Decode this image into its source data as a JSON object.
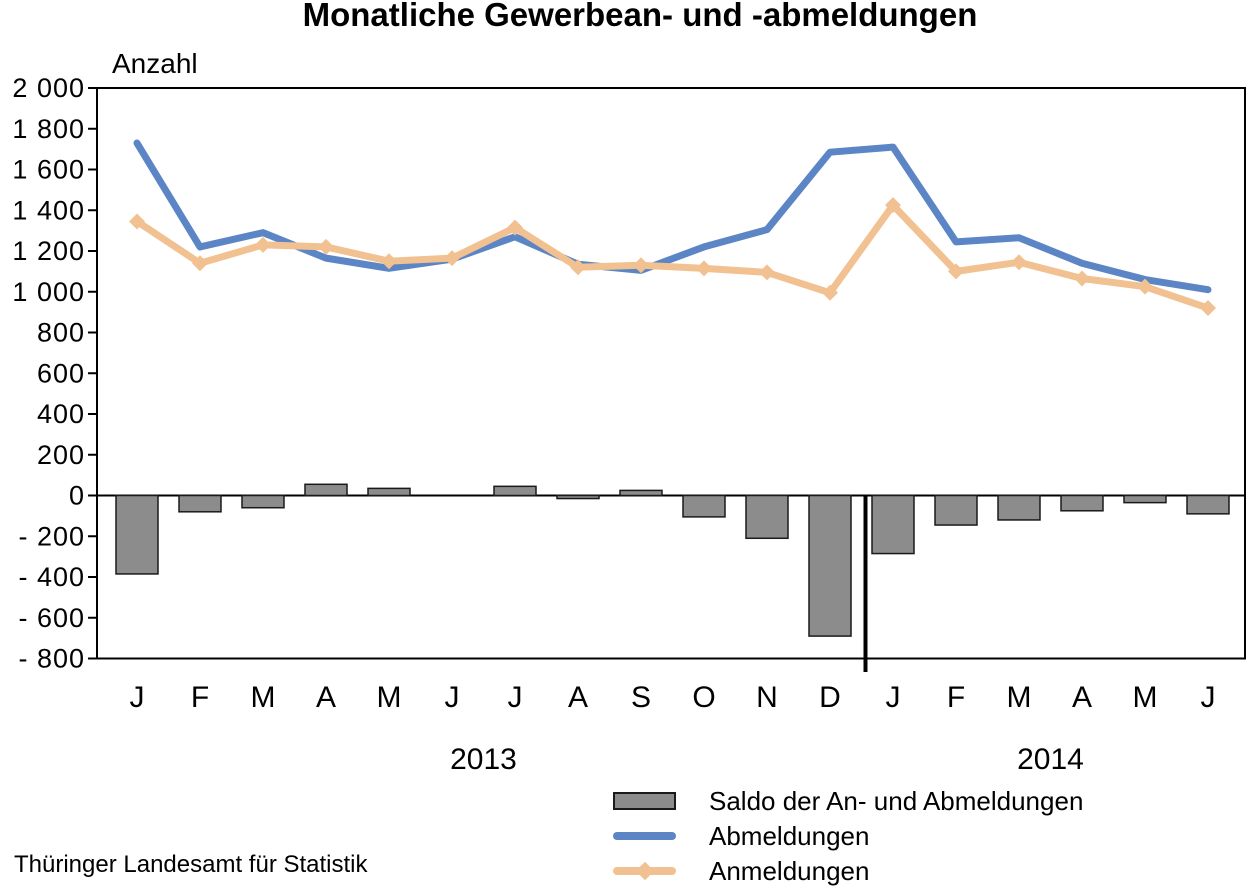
{
  "title": "Monatliche Gewerbean- und -abmeldungen",
  "y_axis_label": "Anzahl",
  "source": "Thüringer Landesamt für Statistik",
  "colors": {
    "abmeldungen_blue": "#5B85C5",
    "anmeldungen_orange": "#F2C191",
    "saldo_gray": "#8C8C8C",
    "bar_border": "#1A1A1A",
    "axis_black": "#000000"
  },
  "legend": {
    "items": [
      {
        "label": "Saldo der An- und Abmeldungen",
        "swatch": "bar",
        "color": "#8C8C8C"
      },
      {
        "label": "Abmeldungen",
        "swatch": "line",
        "color": "#5B85C5"
      },
      {
        "label": "Anmeldungen",
        "swatch": "line-diamond",
        "color": "#F2C191"
      }
    ]
  },
  "chart_data": {
    "type": "combo-bar-line",
    "categories": [
      "J",
      "F",
      "M",
      "A",
      "M",
      "J",
      "J",
      "A",
      "S",
      "O",
      "N",
      "D",
      "J",
      "F",
      "M",
      "A",
      "M",
      "J"
    ],
    "year_groups": [
      {
        "label": "2013",
        "from": 0,
        "to": 11
      },
      {
        "label": "2014",
        "from": 12,
        "to": 17
      }
    ],
    "separator_after_index": 11,
    "ylim": [
      -800,
      2000
    ],
    "ytick_step": 200,
    "ytick_labels": [
      "2 000",
      "1 800",
      "1 600",
      "1 400",
      "1 200",
      "1 000",
      "800",
      "600",
      "400",
      "200",
      "0",
      "- 200",
      "- 400",
      "- 600",
      "- 800"
    ],
    "grid": false,
    "legend_position": "bottom",
    "series": [
      {
        "name": "Saldo der An- und Abmeldungen",
        "type": "bar",
        "color": "#8C8C8C",
        "border_color": "#1A1A1A",
        "values": [
          -385,
          -80,
          -60,
          55,
          35,
          5,
          45,
          -15,
          25,
          -105,
          -210,
          -690,
          -285,
          -145,
          -120,
          -75,
          -35,
          -90
        ]
      },
      {
        "name": "Abmeldungen",
        "type": "line",
        "color": "#5B85C5",
        "values": [
          1730,
          1220,
          1290,
          1165,
          1115,
          1160,
          1270,
          1135,
          1105,
          1220,
          1305,
          1685,
          1710,
          1245,
          1265,
          1140,
          1060,
          1010
        ]
      },
      {
        "name": "Anmeldungen",
        "type": "line",
        "marker": "diamond",
        "color": "#F2C191",
        "values": [
          1345,
          1140,
          1230,
          1220,
          1150,
          1165,
          1315,
          1120,
          1130,
          1115,
          1095,
          995,
          1425,
          1100,
          1145,
          1065,
          1025,
          920
        ]
      }
    ]
  }
}
